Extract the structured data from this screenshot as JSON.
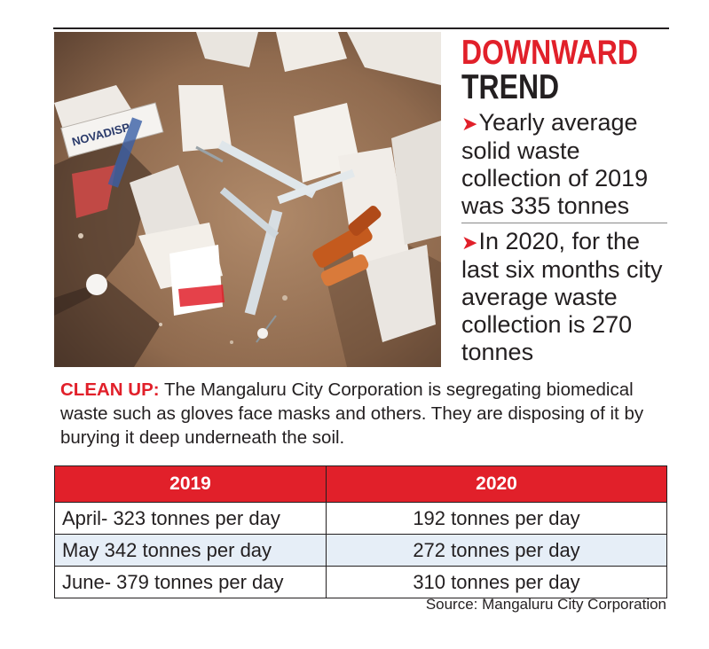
{
  "headline": {
    "line1": "DOWNWARD",
    "line2": "TREND"
  },
  "points": [
    {
      "arrow": "➤",
      "text": "Yearly average solid waste collection of 2019 was 335 tonnes"
    },
    {
      "arrow": "➤",
      "text": "In 2020, for the last six months city average waste collection is 270 tonnes"
    }
  ],
  "caption": {
    "label": "CLEAN UP:",
    "text": "The Mangaluru City Corporation is segregating biomedical waste such as gloves face masks and others. They are disposing of it by burying it deep underneath the soil."
  },
  "table": {
    "headers": [
      "2019",
      "2020"
    ],
    "rows": [
      [
        "April- 323 tonnes per day",
        "192 tonnes per day"
      ],
      [
        "May 342 tonnes per day",
        "272 tonnes per day"
      ],
      [
        "June- 379 tonnes per day",
        "310 tonnes per day"
      ]
    ]
  },
  "photo": {
    "package_text": "NOVADISP"
  },
  "source": "Source: Mangaluru City Corporation",
  "colors": {
    "accent": "#e1202a",
    "shade": "#e6eef7",
    "text": "#231f20"
  }
}
